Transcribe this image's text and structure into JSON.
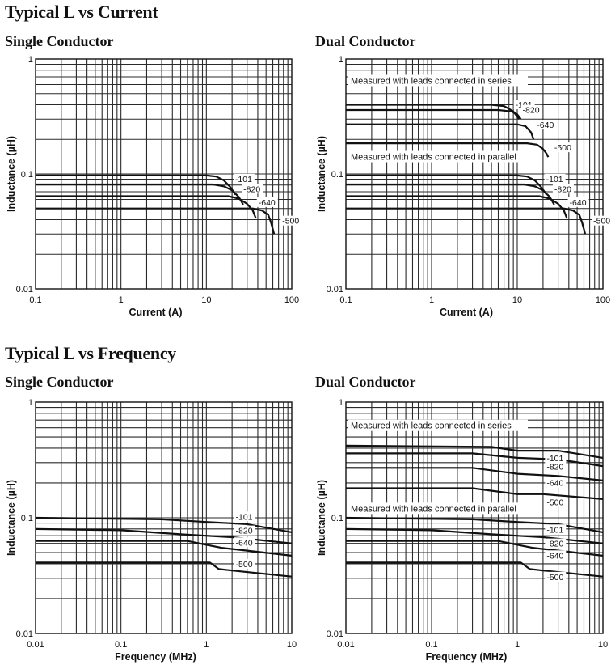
{
  "sections": [
    {
      "title": "Typical L vs Current",
      "subtitles": [
        "Single Conductor",
        "Dual Conductor"
      ]
    },
    {
      "title": "Typical L vs Frequency",
      "subtitles": [
        "Single Conductor",
        "Dual Conductor"
      ]
    }
  ],
  "colors": {
    "curve": "#111111",
    "grid": "#2a2a2a",
    "background": "#ffffff"
  },
  "chart_data": [
    {
      "type": "line",
      "title": "Single Conductor",
      "xlabel": "Current (A)",
      "ylabel": "Inductance (µH)",
      "xscale": "log",
      "yscale": "log",
      "xlim": [
        0.1,
        100
      ],
      "ylim": [
        0.01,
        1
      ],
      "grid": true,
      "xticks": [
        "0.1",
        "1",
        "10",
        "100"
      ],
      "yticks": [
        "0.01",
        "0.1",
        "1"
      ],
      "annotations": [],
      "series": [
        {
          "name": "-101",
          "points": [
            [
              0.1,
              0.097
            ],
            [
              10,
              0.097
            ],
            [
              13,
              0.095
            ],
            [
              16,
              0.088
            ],
            [
              19,
              0.077
            ],
            [
              22,
              0.066
            ]
          ]
        },
        {
          "name": "-820",
          "points": [
            [
              0.1,
              0.081
            ],
            [
              12,
              0.081
            ],
            [
              16,
              0.078
            ],
            [
              20,
              0.072
            ],
            [
              24,
              0.063
            ],
            [
              27,
              0.054
            ]
          ]
        },
        {
          "name": "-640",
          "points": [
            [
              0.1,
              0.064
            ],
            [
              18,
              0.064
            ],
            [
              24,
              0.061
            ],
            [
              30,
              0.055
            ],
            [
              35,
              0.048
            ],
            [
              38,
              0.041
            ]
          ]
        },
        {
          "name": "-500",
          "points": [
            [
              0.1,
              0.05
            ],
            [
              35,
              0.05
            ],
            [
              45,
              0.048
            ],
            [
              53,
              0.044
            ],
            [
              57,
              0.038
            ],
            [
              60,
              0.033
            ],
            [
              62,
              0.03
            ]
          ]
        }
      ]
    },
    {
      "type": "line",
      "title": "Dual Conductor",
      "xlabel": "Current (A)",
      "ylabel": "Inductance (µH)",
      "xscale": "log",
      "yscale": "log",
      "xlim": [
        0.1,
        100
      ],
      "ylim": [
        0.01,
        1
      ],
      "grid": true,
      "xticks": [
        "0.1",
        "1",
        "10",
        "100"
      ],
      "yticks": [
        "0.01",
        "0.1",
        "1"
      ],
      "annotations": [
        "Measured with leads connected in series",
        "Measured with leads connected in parallel"
      ],
      "series": [
        {
          "name": "-101",
          "group": "series",
          "points": [
            [
              0.1,
              0.4
            ],
            [
              5,
              0.4
            ],
            [
              7,
              0.39
            ],
            [
              9,
              0.35
            ],
            [
              10.5,
              0.3
            ]
          ]
        },
        {
          "name": "-820",
          "group": "series",
          "points": [
            [
              0.1,
              0.36
            ],
            [
              6,
              0.36
            ],
            [
              8.5,
              0.35
            ],
            [
              10,
              0.33
            ],
            [
              11,
              0.3
            ]
          ]
        },
        {
          "name": "-640",
          "group": "series",
          "points": [
            [
              0.1,
              0.27
            ],
            [
              10,
              0.27
            ],
            [
              12.5,
              0.26
            ],
            [
              14.5,
              0.23
            ],
            [
              15.5,
              0.2
            ]
          ]
        },
        {
          "name": "-500",
          "group": "series",
          "points": [
            [
              0.1,
              0.185
            ],
            [
              13,
              0.185
            ],
            [
              17,
              0.18
            ],
            [
              20,
              0.165
            ],
            [
              22,
              0.15
            ],
            [
              23,
              0.14
            ]
          ]
        },
        {
          "name": "-101",
          "group": "parallel",
          "points": [
            [
              0.1,
              0.097
            ],
            [
              10,
              0.097
            ],
            [
              13,
              0.095
            ],
            [
              16,
              0.088
            ],
            [
              19,
              0.077
            ],
            [
              22,
              0.066
            ]
          ]
        },
        {
          "name": "-820",
          "group": "parallel",
          "points": [
            [
              0.1,
              0.081
            ],
            [
              12,
              0.081
            ],
            [
              16,
              0.078
            ],
            [
              20,
              0.072
            ],
            [
              24,
              0.063
            ],
            [
              27,
              0.054
            ]
          ]
        },
        {
          "name": "-640",
          "group": "parallel",
          "points": [
            [
              0.1,
              0.064
            ],
            [
              18,
              0.064
            ],
            [
              24,
              0.061
            ],
            [
              30,
              0.055
            ],
            [
              35,
              0.048
            ],
            [
              38,
              0.041
            ]
          ]
        },
        {
          "name": "-500",
          "group": "parallel",
          "points": [
            [
              0.1,
              0.05
            ],
            [
              35,
              0.05
            ],
            [
              45,
              0.048
            ],
            [
              53,
              0.044
            ],
            [
              57,
              0.038
            ],
            [
              60,
              0.033
            ],
            [
              62,
              0.03
            ]
          ]
        }
      ]
    },
    {
      "type": "line",
      "title": "Single Conductor",
      "xlabel": "Frequency (MHz)",
      "ylabel": "Inductance (µH)",
      "xscale": "log",
      "yscale": "log",
      "xlim": [
        0.01,
        10
      ],
      "ylim": [
        0.01,
        1
      ],
      "grid": true,
      "xticks": [
        "0.01",
        "0.1",
        "1",
        "10"
      ],
      "yticks": [
        "0.01",
        "0.1",
        "1"
      ],
      "annotations": [],
      "series": [
        {
          "name": "-101",
          "points": [
            [
              0.01,
              0.1
            ],
            [
              0.3,
              0.097
            ],
            [
              1,
              0.092
            ],
            [
              3,
              0.088
            ],
            [
              10,
              0.075
            ]
          ]
        },
        {
          "name": "-820",
          "points": [
            [
              0.01,
              0.08
            ],
            [
              0.1,
              0.078
            ],
            [
              0.5,
              0.072
            ],
            [
              2,
              0.068
            ],
            [
              10,
              0.06
            ]
          ]
        },
        {
          "name": "-640",
          "points": [
            [
              0.01,
              0.063
            ],
            [
              0.6,
              0.063
            ],
            [
              1.5,
              0.055
            ],
            [
              3,
              0.052
            ],
            [
              10,
              0.047
            ]
          ]
        },
        {
          "name": "-500",
          "points": [
            [
              0.01,
              0.041
            ],
            [
              1.1,
              0.041
            ],
            [
              1.4,
              0.036
            ],
            [
              2,
              0.035
            ],
            [
              10,
              0.031
            ]
          ]
        }
      ]
    },
    {
      "type": "line",
      "title": "Dual Conductor",
      "xlabel": "Frequency (MHz)",
      "ylabel": "Inductance (µH)",
      "xscale": "log",
      "yscale": "log",
      "xlim": [
        0.01,
        10
      ],
      "ylim": [
        0.01,
        1
      ],
      "grid": true,
      "xticks": [
        "0.01",
        "0.1",
        "1",
        "10"
      ],
      "yticks": [
        "0.01",
        "0.1",
        "1"
      ],
      "annotations": [
        "Measured with leads connected in series",
        "Measured with leads connected in parallel"
      ],
      "series": [
        {
          "name": "-101",
          "group": "series",
          "points": [
            [
              0.01,
              0.42
            ],
            [
              0.5,
              0.41
            ],
            [
              1,
              0.38
            ],
            [
              3,
              0.38
            ],
            [
              10,
              0.33
            ]
          ]
        },
        {
          "name": "-820",
          "group": "series",
          "points": [
            [
              0.01,
              0.36
            ],
            [
              0.3,
              0.36
            ],
            [
              1,
              0.33
            ],
            [
              3,
              0.32
            ],
            [
              10,
              0.28
            ]
          ]
        },
        {
          "name": "-640",
          "group": "series",
          "points": [
            [
              0.01,
              0.27
            ],
            [
              0.3,
              0.27
            ],
            [
              1,
              0.24
            ],
            [
              3,
              0.23
            ],
            [
              10,
              0.21
            ]
          ]
        },
        {
          "name": "-500",
          "group": "series",
          "points": [
            [
              0.01,
              0.18
            ],
            [
              0.3,
              0.18
            ],
            [
              1,
              0.16
            ],
            [
              2,
              0.16
            ],
            [
              10,
              0.145
            ]
          ]
        },
        {
          "name": "-101",
          "group": "parallel",
          "points": [
            [
              0.01,
              0.1
            ],
            [
              0.3,
              0.097
            ],
            [
              1,
              0.092
            ],
            [
              3,
              0.088
            ],
            [
              10,
              0.075
            ]
          ]
        },
        {
          "name": "-820",
          "group": "parallel",
          "points": [
            [
              0.01,
              0.08
            ],
            [
              0.1,
              0.078
            ],
            [
              0.5,
              0.072
            ],
            [
              2,
              0.068
            ],
            [
              10,
              0.06
            ]
          ]
        },
        {
          "name": "-640",
          "group": "parallel",
          "points": [
            [
              0.01,
              0.063
            ],
            [
              0.6,
              0.063
            ],
            [
              1.5,
              0.055
            ],
            [
              3,
              0.052
            ],
            [
              10,
              0.047
            ]
          ]
        },
        {
          "name": "-500",
          "group": "parallel",
          "points": [
            [
              0.01,
              0.041
            ],
            [
              1.1,
              0.041
            ],
            [
              1.4,
              0.036
            ],
            [
              2,
              0.035
            ],
            [
              10,
              0.031
            ]
          ]
        }
      ]
    }
  ]
}
